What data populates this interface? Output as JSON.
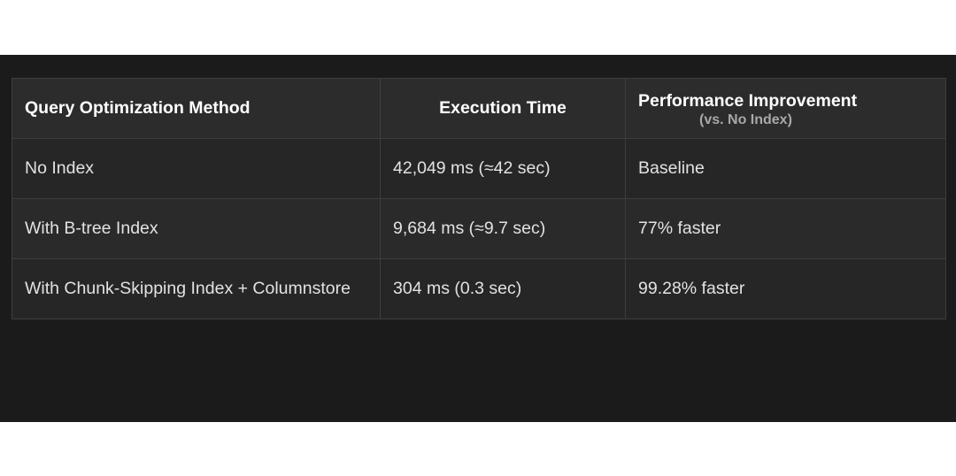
{
  "table": {
    "headers": [
      {
        "label": "Query Optimization Method"
      },
      {
        "label": "Execution Time"
      },
      {
        "label": "Performance Improvement",
        "sublabel": "(vs. No Index)"
      }
    ],
    "rows": [
      {
        "method": "No Index",
        "time": "42,049 ms (≈42 sec)",
        "improvement": "Baseline"
      },
      {
        "method": "With B-tree Index",
        "time": "9,684 ms (≈9.7 sec)",
        "improvement": "77% faster"
      },
      {
        "method": "With Chunk-Skipping Index + Columnstore",
        "time": "304 ms (0.3 sec)",
        "improvement": "99.28% faster"
      }
    ]
  },
  "colors": {
    "panel_bg": "#1b1b1b",
    "header_bg": "#2c2c2c",
    "row_bg": "#262626",
    "border": "#3e3e3e",
    "text": "#e2e2e2"
  }
}
